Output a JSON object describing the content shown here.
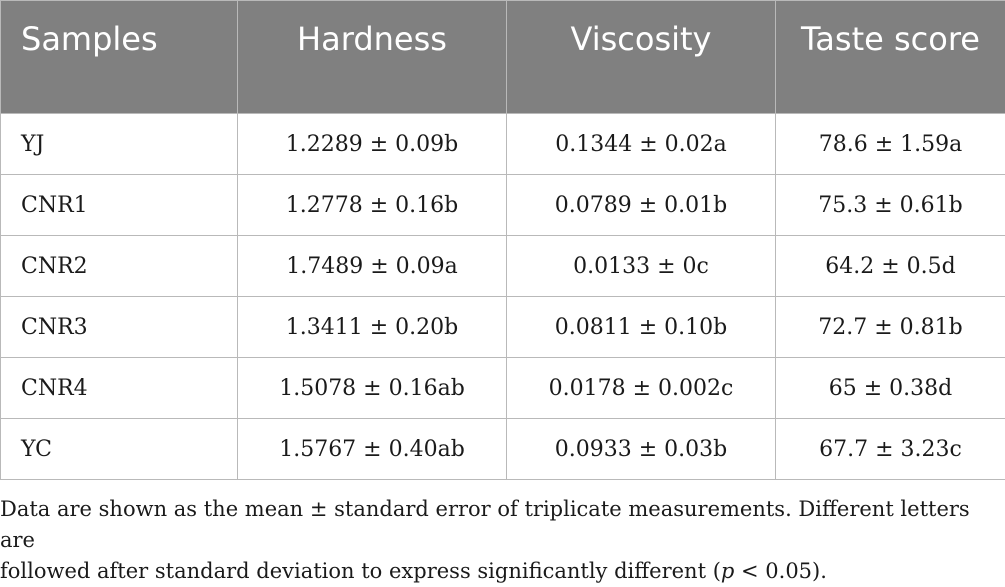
{
  "table": {
    "headers": [
      "Samples",
      "Hardness",
      "Viscosity",
      "Taste score"
    ],
    "rows": [
      {
        "sample": "YJ",
        "hardness": "1.2289 ± 0.09b",
        "viscosity": "0.1344 ± 0.02a",
        "taste": "78.6 ± 1.59a"
      },
      {
        "sample": "CNR1",
        "hardness": "1.2778 ± 0.16b",
        "viscosity": "0.0789 ± 0.01b",
        "taste": "75.3 ± 0.61b"
      },
      {
        "sample": "CNR2",
        "hardness": "1.7489 ± 0.09a",
        "viscosity": "0.0133 ± 0c",
        "taste": "64.2 ± 0.5d"
      },
      {
        "sample": "CNR3",
        "hardness": "1.3411 ± 0.20b",
        "viscosity": "0.0811 ± 0.10b",
        "taste": "72.7 ± 0.81b"
      },
      {
        "sample": "CNR4",
        "hardness": "1.5078 ± 0.16ab",
        "viscosity": "0.0178 ± 0.002c",
        "taste": "65 ± 0.38d"
      },
      {
        "sample": "YC",
        "hardness": "1.5767 ± 0.40ab",
        "viscosity": "0.0933 ± 0.03b",
        "taste": "67.7 ± 3.23c"
      }
    ]
  },
  "footnote": {
    "line1": "Data are shown as the mean ± standard error of triplicate measurements. Different letters are",
    "line2_before": "followed after standard deviation to express significantly different (",
    "line2_italic": "p",
    "line2_after": " < 0.05)."
  },
  "colors": {
    "header_bg": "#808080",
    "header_text": "#ffffff",
    "border": "#b9b9b9"
  }
}
